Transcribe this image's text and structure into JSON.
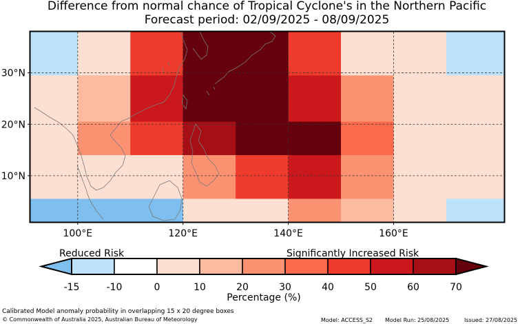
{
  "title": "Difference from normal chance of Tropical Cyclone's in the Northern Pacific",
  "subtitle": "Forecast period: 02/09/2025 - 08/09/2025",
  "map": {
    "lon_range": [
      91,
      181
    ],
    "lat_range": [
      1,
      38
    ],
    "lon_ticks": [
      "100°E",
      "120°E",
      "140°E",
      "160°E"
    ],
    "lon_tick_values": [
      100,
      120,
      140,
      160
    ],
    "lat_ticks": [
      "30°N",
      "20°N",
      "10°N"
    ],
    "lat_tick_values": [
      30,
      20,
      10
    ],
    "gridlines": "dashed",
    "rows": [
      {
        "lat": [
          29.5,
          38
        ],
        "cells": [
          {
            "lon": [
              91,
              100
            ],
            "pct": -15
          },
          {
            "lon": [
              100,
              110
            ],
            "pct": 5
          },
          {
            "lon": [
              110,
              120
            ],
            "pct": 45
          },
          {
            "lon": [
              120,
              130
            ],
            "pct": 70
          },
          {
            "lon": [
              130,
              140
            ],
            "pct": 70
          },
          {
            "lon": [
              140,
              150
            ],
            "pct": 45
          },
          {
            "lon": [
              150,
              160
            ],
            "pct": 5
          },
          {
            "lon": [
              160,
              170
            ],
            "pct": 0
          },
          {
            "lon": [
              170,
              181
            ],
            "pct": -15
          }
        ]
      },
      {
        "lat": [
          20.5,
          29.5
        ],
        "cells": [
          {
            "lon": [
              91,
              100
            ],
            "pct": 5
          },
          {
            "lon": [
              100,
              110
            ],
            "pct": 15
          },
          {
            "lon": [
              110,
              120
            ],
            "pct": 55
          },
          {
            "lon": [
              120,
              130
            ],
            "pct": 70
          },
          {
            "lon": [
              130,
              140
            ],
            "pct": 70
          },
          {
            "lon": [
              140,
              150
            ],
            "pct": 55
          },
          {
            "lon": [
              150,
              160
            ],
            "pct": 25
          },
          {
            "lon": [
              160,
              170
            ],
            "pct": 0
          },
          {
            "lon": [
              170,
              181
            ],
            "pct": 0
          }
        ]
      },
      {
        "lat": [
          14,
          20.5
        ],
        "cells": [
          {
            "lon": [
              91,
              100
            ],
            "pct": 5
          },
          {
            "lon": [
              100,
              110
            ],
            "pct": 25
          },
          {
            "lon": [
              110,
              120
            ],
            "pct": 45
          },
          {
            "lon": [
              120,
              130
            ],
            "pct": 65
          },
          {
            "lon": [
              130,
              140
            ],
            "pct": 70
          },
          {
            "lon": [
              140,
              150
            ],
            "pct": 70
          },
          {
            "lon": [
              150,
              160
            ],
            "pct": 35
          },
          {
            "lon": [
              160,
              170
            ],
            "pct": 5
          },
          {
            "lon": [
              170,
              181
            ],
            "pct": 5
          }
        ]
      },
      {
        "lat": [
          5.5,
          14
        ],
        "cells": [
          {
            "lon": [
              91,
              100
            ],
            "pct": 0
          },
          {
            "lon": [
              100,
              110
            ],
            "pct": 0
          },
          {
            "lon": [
              110,
              120
            ],
            "pct": 5
          },
          {
            "lon": [
              120,
              130
            ],
            "pct": 25
          },
          {
            "lon": [
              130,
              140
            ],
            "pct": 45
          },
          {
            "lon": [
              140,
              150
            ],
            "pct": 55
          },
          {
            "lon": [
              150,
              160
            ],
            "pct": 25
          },
          {
            "lon": [
              160,
              170
            ],
            "pct": 5
          },
          {
            "lon": [
              170,
              181
            ],
            "pct": 0
          }
        ]
      },
      {
        "lat": [
          1,
          5.5
        ],
        "cells": [
          {
            "lon": [
              91,
              100
            ],
            "pct": -20
          },
          {
            "lon": [
              100,
              110
            ],
            "pct": -20
          },
          {
            "lon": [
              110,
              120
            ],
            "pct": -20
          },
          {
            "lon": [
              120,
              130
            ],
            "pct": 0
          },
          {
            "lon": [
              130,
              140
            ],
            "pct": 5
          },
          {
            "lon": [
              140,
              150
            ],
            "pct": 25
          },
          {
            "lon": [
              150,
              160
            ],
            "pct": 15
          },
          {
            "lon": [
              160,
              170
            ],
            "pct": 0
          },
          {
            "lon": [
              170,
              181
            ],
            "pct": -15
          }
        ]
      }
    ]
  },
  "legend": {
    "label_left": "Reduced Risk",
    "label_right": "Significantly Increased Risk",
    "ticks": [
      "-15",
      "-10",
      "0",
      "10",
      "20",
      "30",
      "40",
      "50",
      "60",
      "70"
    ],
    "colors": {
      "under": "#7fbfef",
      "bins": [
        "#bde3fb",
        "#ffffff",
        "#fee0d2",
        "#fcbba1",
        "#fc9272",
        "#fb6a4a",
        "#ef3b2c",
        "#cb181d",
        "#a50f15"
      ],
      "over": "#67000d"
    },
    "axis_label": "Percentage (%)"
  },
  "footer": {
    "description": "Calibrated Model anomaly probability in overlapping 15 x 20 degree boxes",
    "copyright": "© Commonwealth of Australia 2025, Australian Bureau of Meteorology",
    "model": "Model: ACCESS_S2",
    "model_run": "Model Run: 25/08/2025",
    "issued": "Issued: 27/08/2025"
  }
}
